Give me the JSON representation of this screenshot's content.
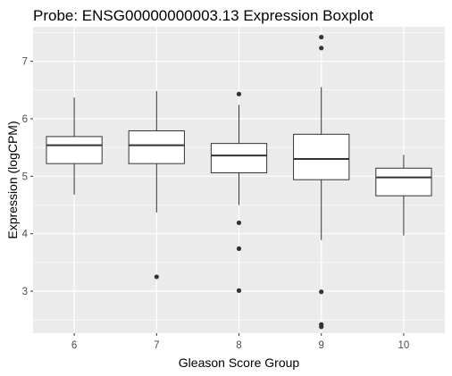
{
  "chart_data": {
    "type": "boxplot",
    "title": "Probe: ENSG00000000003.13 Expression Boxplot",
    "xlabel": "Gleason Score Group",
    "ylabel": "Expression (logCPM)",
    "categories": [
      "6",
      "7",
      "8",
      "9",
      "10"
    ],
    "y_ticks": [
      3,
      4,
      5,
      6,
      7
    ],
    "ylim": [
      2.27,
      7.6
    ],
    "grid": true,
    "boxes": [
      {
        "group": "6",
        "whisker_low": 4.68,
        "q1": 5.22,
        "median": 5.54,
        "q3": 5.69,
        "whisker_high": 6.37,
        "outliers": []
      },
      {
        "group": "7",
        "whisker_low": 4.37,
        "q1": 5.22,
        "median": 5.54,
        "q3": 5.79,
        "whisker_high": 6.48,
        "outliers": [
          3.25
        ]
      },
      {
        "group": "8",
        "whisker_low": 4.5,
        "q1": 5.06,
        "median": 5.36,
        "q3": 5.57,
        "whisker_high": 6.24,
        "outliers": [
          6.43,
          4.19,
          3.74,
          3.01
        ]
      },
      {
        "group": "9",
        "whisker_low": 3.89,
        "q1": 4.94,
        "median": 5.3,
        "q3": 5.73,
        "whisker_high": 6.55,
        "outliers": [
          7.42,
          7.23,
          2.99,
          2.42,
          2.38
        ]
      },
      {
        "group": "10",
        "whisker_low": 3.97,
        "q1": 4.66,
        "median": 4.98,
        "q3": 5.14,
        "whisker_high": 5.37,
        "outliers": []
      }
    ],
    "colors": {
      "panel": "#ebebeb",
      "grid_major": "#ffffff",
      "box_fill": "#ffffff",
      "box_stroke": "#333333",
      "outlier": "#333333"
    }
  }
}
